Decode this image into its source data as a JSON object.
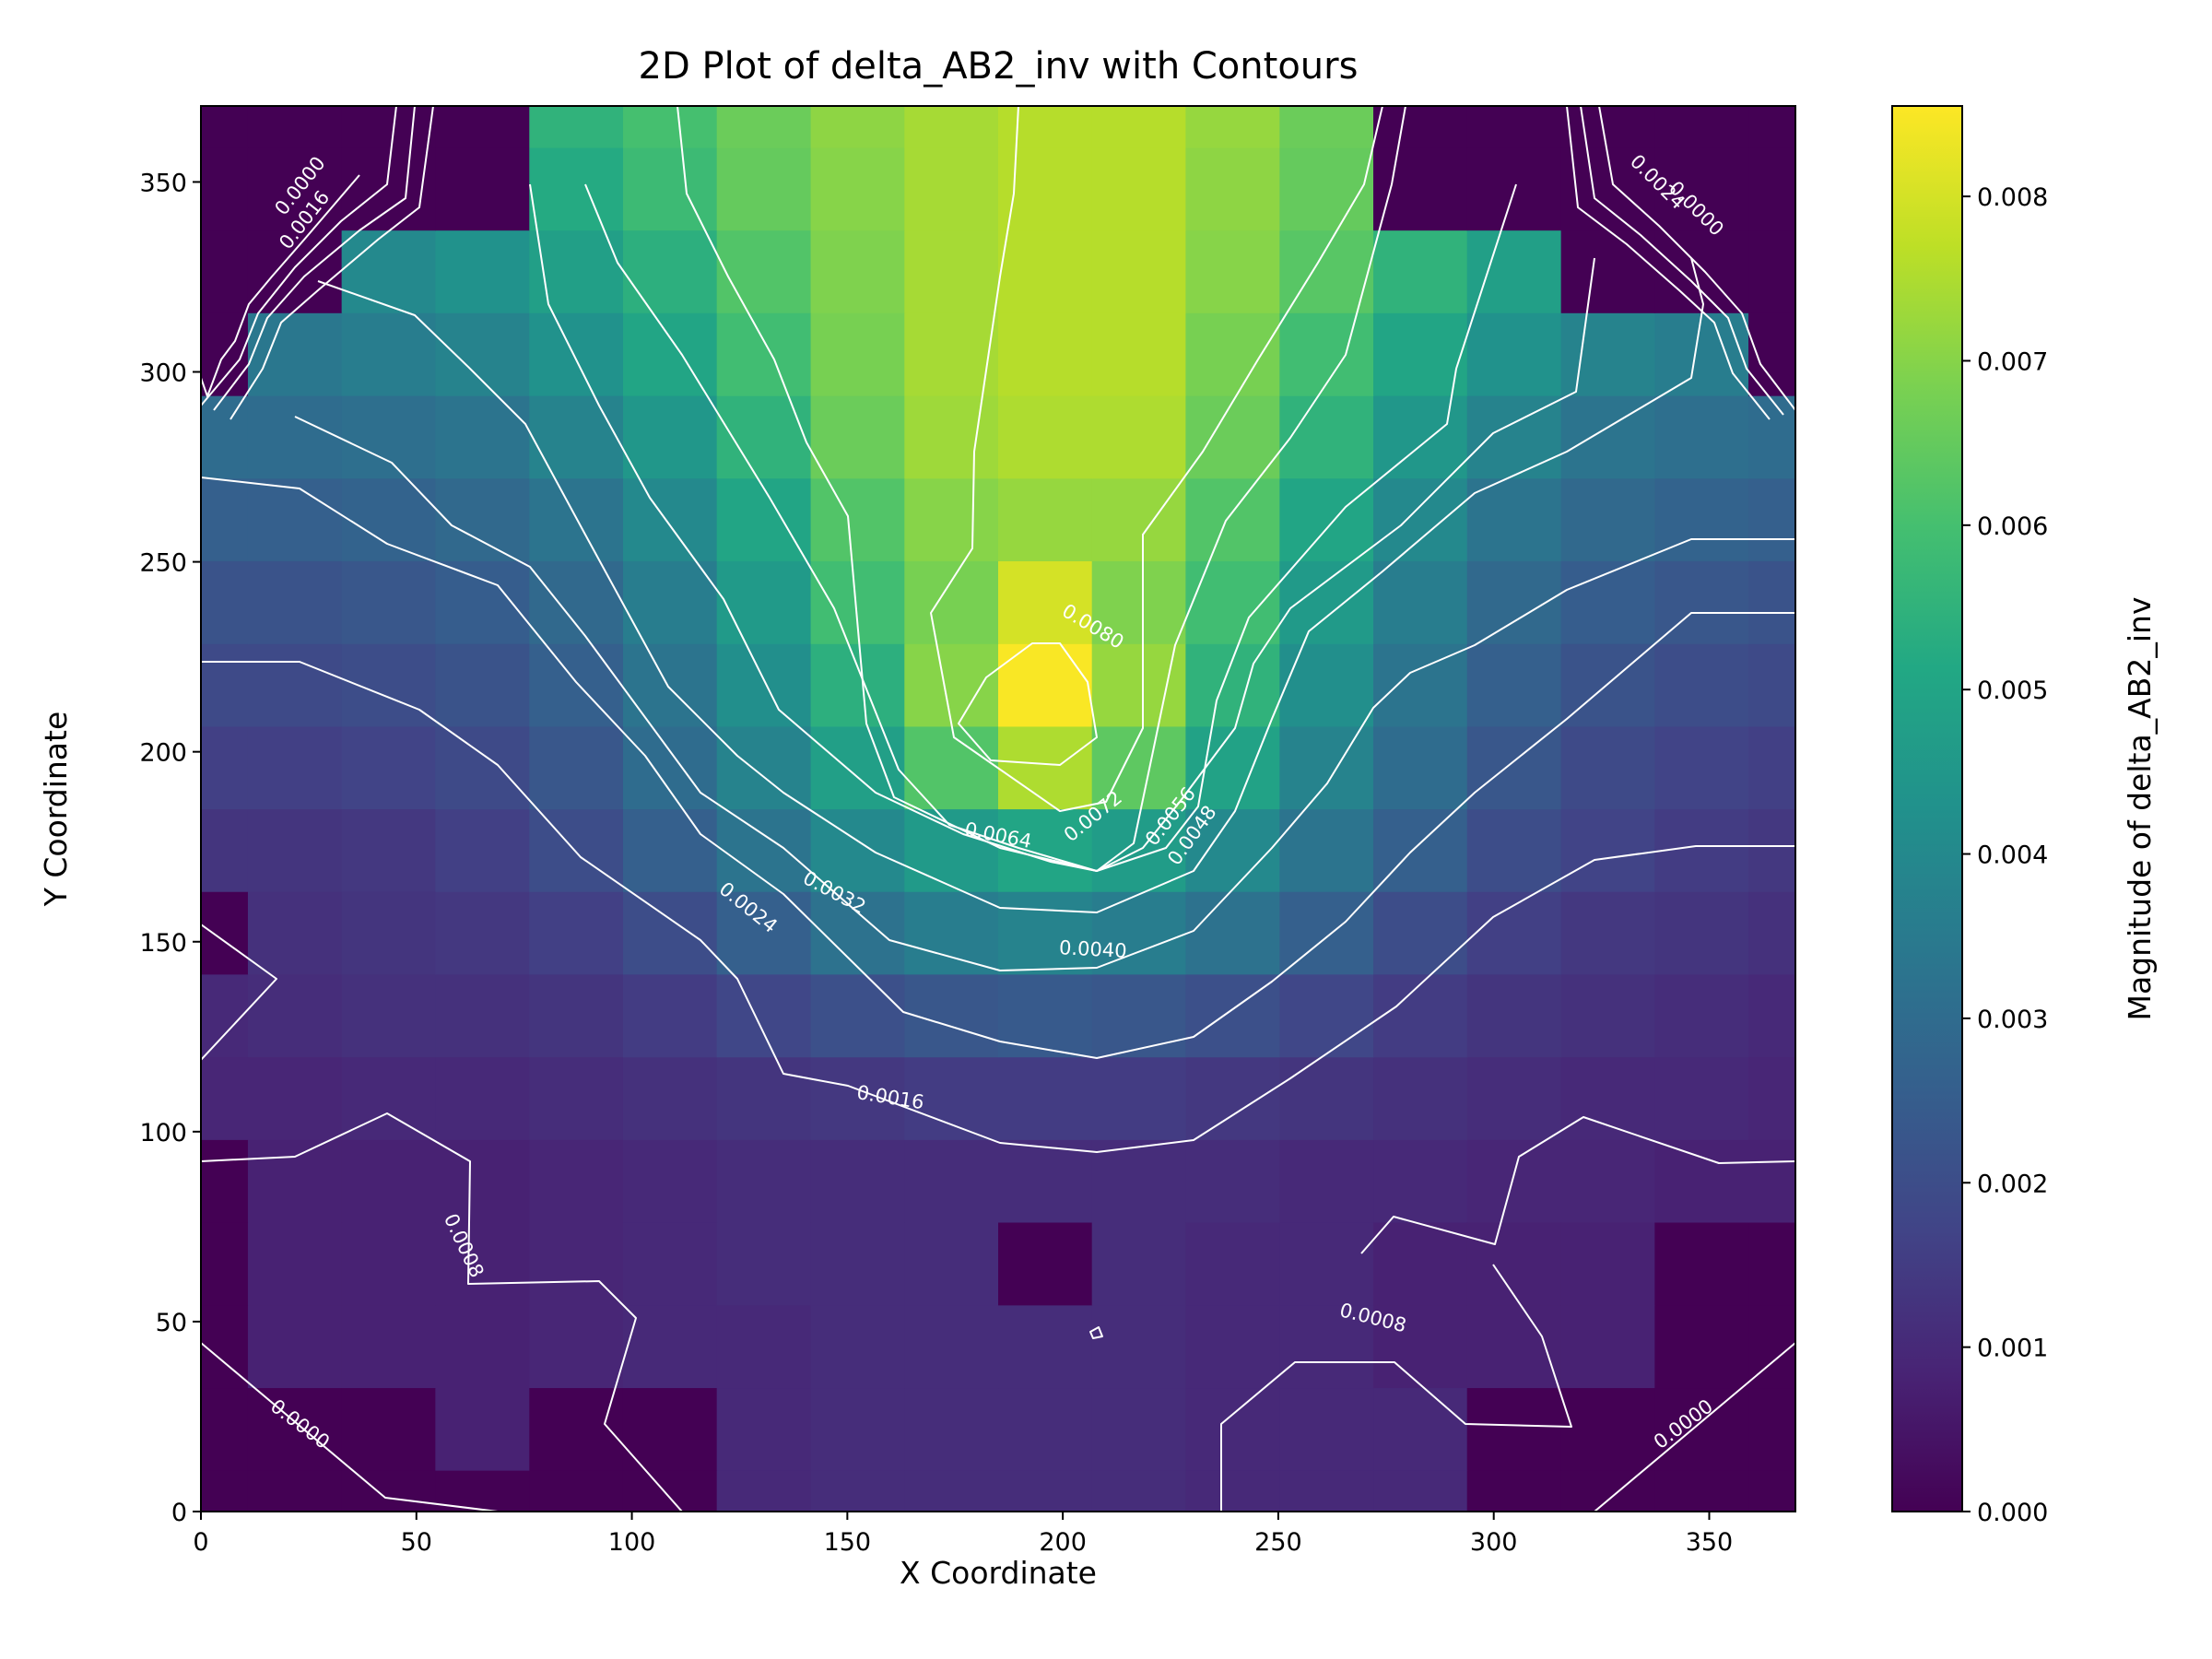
{
  "chart_data": {
    "type": "heatmap",
    "title": "2D Plot of delta_AB2_inv with Contours",
    "xlabel": "X Coordinate",
    "ylabel": "Y Coordinate",
    "xlim": [
      0,
      370
    ],
    "ylim": [
      0,
      370
    ],
    "x_ticks": [
      "0",
      "50",
      "100",
      "150",
      "200",
      "250",
      "300",
      "350"
    ],
    "y_ticks": [
      "0",
      "50",
      "100",
      "150",
      "200",
      "250",
      "300",
      "350"
    ],
    "colormap": "viridis",
    "colorbar": {
      "label": "Magnitude of delta_AB2_inv",
      "range": [
        0,
        0.00855
      ],
      "ticks": [
        "0.000",
        "0.001",
        "0.002",
        "0.003",
        "0.004",
        "0.005",
        "0.006",
        "0.007",
        "0.008"
      ]
    },
    "grid": false,
    "x_centers": [
      0,
      21.8,
      43.5,
      65.3,
      87.1,
      108.8,
      130.6,
      152.4,
      174.1,
      195.9,
      217.6,
      239.4,
      261.2,
      282.9,
      304.7,
      326.5,
      348.2,
      370
    ],
    "y_centers": [
      0,
      21.8,
      43.5,
      65.3,
      87.1,
      108.8,
      130.6,
      152.4,
      174.1,
      195.9,
      217.6,
      239.4,
      261.2,
      282.9,
      304.7,
      326.5,
      348.2,
      370
    ],
    "z": [
      [
        0.0,
        0.0,
        0.0,
        0.0,
        0.0,
        0.0,
        0.001,
        0.0011,
        0.0011,
        0.0011,
        0.0011,
        0.001,
        0.001,
        0.001,
        0.0,
        0.0,
        0.0,
        0.0
      ],
      [
        0.0,
        0.0,
        0.0,
        0.0008,
        0.0,
        0.0,
        0.001,
        0.0011,
        0.0011,
        0.0011,
        0.0011,
        0.001,
        0.001,
        0.001,
        0.0,
        0.0,
        0.0,
        0.0
      ],
      [
        0.0,
        0.0008,
        0.0008,
        0.0008,
        0.0009,
        0.001,
        0.001,
        0.0011,
        0.0011,
        0.0011,
        0.0011,
        0.001,
        0.001,
        0.0008,
        0.0008,
        0.0008,
        0.0,
        0.0
      ],
      [
        0.0,
        0.0008,
        0.0008,
        0.0008,
        0.0009,
        0.001,
        0.0011,
        0.0011,
        0.0011,
        0.0,
        0.0011,
        0.001,
        0.001,
        0.0008,
        0.0008,
        0.0008,
        0.0,
        0.0
      ],
      [
        0.0,
        0.0008,
        0.0008,
        0.0008,
        0.0009,
        0.001,
        0.0011,
        0.0011,
        0.0011,
        0.0011,
        0.0011,
        0.0011,
        0.001,
        0.001,
        0.0009,
        0.0009,
        0.0008,
        0.0008
      ],
      [
        0.0009,
        0.0009,
        0.001,
        0.001,
        0.0011,
        0.0012,
        0.0013,
        0.0014,
        0.0015,
        0.0015,
        0.0015,
        0.0014,
        0.0013,
        0.0012,
        0.0011,
        0.001,
        0.001,
        0.0009
      ],
      [
        0.001,
        0.0011,
        0.0012,
        0.0012,
        0.0013,
        0.0015,
        0.0018,
        0.0021,
        0.0023,
        0.0024,
        0.0023,
        0.0021,
        0.0018,
        0.0015,
        0.0013,
        0.0012,
        0.0011,
        0.001
      ],
      [
        0.0,
        0.0012,
        0.0013,
        0.0014,
        0.0016,
        0.002,
        0.0026,
        0.0032,
        0.0036,
        0.0038,
        0.0036,
        0.0032,
        0.0026,
        0.002,
        0.0016,
        0.0014,
        0.0013,
        0.0012
      ],
      [
        0.0013,
        0.0013,
        0.0014,
        0.0016,
        0.002,
        0.0026,
        0.0033,
        0.004,
        0.0046,
        0.005,
        0.0047,
        0.004,
        0.0033,
        0.0026,
        0.002,
        0.0017,
        0.0015,
        0.0014
      ],
      [
        0.0016,
        0.0016,
        0.0017,
        0.0019,
        0.0023,
        0.003,
        0.0038,
        0.0048,
        0.0062,
        0.0075,
        0.0064,
        0.0049,
        0.0038,
        0.003,
        0.0023,
        0.0019,
        0.0017,
        0.0016
      ],
      [
        0.0019,
        0.0019,
        0.002,
        0.0022,
        0.0026,
        0.0033,
        0.0042,
        0.0054,
        0.007,
        0.0085,
        0.0072,
        0.0055,
        0.0042,
        0.0033,
        0.0026,
        0.0022,
        0.002,
        0.0019
      ],
      [
        0.0022,
        0.0022,
        0.0023,
        0.0025,
        0.0029,
        0.0036,
        0.0046,
        0.0059,
        0.0068,
        0.008,
        0.0069,
        0.0059,
        0.0046,
        0.0036,
        0.0029,
        0.0025,
        0.0023,
        0.0022
      ],
      [
        0.0026,
        0.0026,
        0.0027,
        0.0029,
        0.0033,
        0.004,
        0.005,
        0.0062,
        0.007,
        0.0072,
        0.0072,
        0.0062,
        0.005,
        0.004,
        0.0033,
        0.0029,
        0.0027,
        0.0026
      ],
      [
        0.003,
        0.003,
        0.0031,
        0.0033,
        0.0038,
        0.0045,
        0.0055,
        0.0066,
        0.0073,
        0.0075,
        0.0075,
        0.0066,
        0.0055,
        0.0045,
        0.0038,
        0.0033,
        0.0031,
        0.003
      ],
      [
        0.0,
        0.0034,
        0.0036,
        0.0038,
        0.0043,
        0.005,
        0.0059,
        0.0068,
        0.0074,
        0.0076,
        0.0076,
        0.0068,
        0.0059,
        0.005,
        0.0043,
        0.0038,
        0.0036,
        0.0
      ],
      [
        0.0,
        0.0,
        0.004,
        0.0043,
        0.0048,
        0.0054,
        0.0062,
        0.0069,
        0.0074,
        0.0076,
        0.0076,
        0.007,
        0.0063,
        0.0055,
        0.0048,
        0.0,
        0.0,
        0.0
      ],
      [
        0.0,
        0.0,
        0.0,
        0.0,
        0.0052,
        0.0058,
        0.0065,
        0.007,
        0.0074,
        0.0076,
        0.0076,
        0.0071,
        0.0065,
        0.0,
        0.0,
        0.0,
        0.0,
        0.0
      ],
      [
        0.0,
        0.0,
        0.0,
        0.0,
        0.0055,
        0.006,
        0.0066,
        0.0071,
        0.0074,
        0.0076,
        0.0076,
        0.0072,
        0.0066,
        0.0,
        0.0,
        0.0,
        0.0,
        0.0
      ]
    ],
    "contour_levels": [
      "0.0000",
      "0.0008",
      "0.0016",
      "0.0024",
      "0.0032",
      "0.0040",
      "0.0048",
      "0.0056",
      "0.0064",
      "0.0072",
      "0.0080"
    ],
    "contour_labels": [
      {
        "text": "0.0000",
        "x": 23,
        "y": 23,
        "angle": 37
      },
      {
        "text": "0.0000",
        "x": 344,
        "y": 23,
        "angle": -37
      },
      {
        "text": "0.0008",
        "x": 61,
        "y": 70,
        "angle": 65
      },
      {
        "text": "0.0008",
        "x": 272,
        "y": 51,
        "angle": 14
      },
      {
        "text": "0.0016",
        "x": 160,
        "y": 109,
        "angle": 9
      },
      {
        "text": "0.0024",
        "x": 127,
        "y": 159,
        "angle": 39
      },
      {
        "text": "0.0032",
        "x": 147,
        "y": 163,
        "angle": 28
      },
      {
        "text": "0.0040",
        "x": 207,
        "y": 148,
        "angle": 3
      },
      {
        "text": "0.0064",
        "x": 185,
        "y": 178,
        "angle": 11
      },
      {
        "text": "0.0072",
        "x": 207,
        "y": 183,
        "angle": -39
      },
      {
        "text": "0.0056",
        "x": 225,
        "y": 183,
        "angle": -52
      },
      {
        "text": "0.0048",
        "x": 230,
        "y": 178,
        "angle": -54
      },
      {
        "text": "0.0080",
        "x": 207,
        "y": 233,
        "angle": 31
      },
      {
        "text": "0.0016",
        "x": 24,
        "y": 340,
        "angle": -52
      },
      {
        "text": "0.0000",
        "x": 23,
        "y": 349,
        "angle": -52
      },
      {
        "text": "0.0000",
        "x": 347,
        "y": 343,
        "angle": 45
      },
      {
        "text": "0.0024",
        "x": 338,
        "y": 350,
        "angle": 45
      }
    ]
  }
}
